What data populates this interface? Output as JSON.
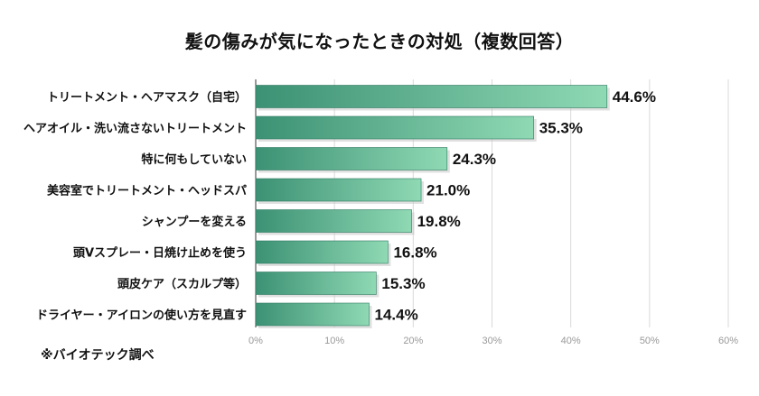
{
  "chart_data": {
    "type": "bar",
    "orientation": "horizontal",
    "title": "髪の傷みが気になったときの対処（複数回答）",
    "categories": [
      "トリートメント・ヘアマスク（自宅）",
      "ヘアオイル・洗い流さないトリートメント",
      "特に何もしていない",
      "美容室でトリートメント・ヘッドスパ",
      "シャンプーを変える",
      "頭Vスプレー・日焼け止めを使う",
      "頭皮ケア（スカルプ等）",
      "ドライヤー・アイロンの使い方を見直す"
    ],
    "values": [
      44.6,
      35.3,
      24.3,
      21.0,
      19.8,
      16.8,
      15.3,
      14.4
    ],
    "value_labels": [
      "44.6%",
      "35.3%",
      "24.3%",
      "21.0%",
      "19.8%",
      "16.8%",
      "15.3%",
      "14.4%"
    ],
    "xlim": [
      0,
      60
    ],
    "xticks": [
      "0%",
      "10%",
      "20%",
      "30%",
      "40%",
      "50%",
      "60%"
    ],
    "xlabel": "",
    "ylabel": "",
    "grid": true,
    "colors": {
      "bar_start": "#3c9174",
      "bar_end": "#8fd9b4",
      "bar_edge": "#2f7a61",
      "grid": "#d9d9d9",
      "axis": "#333333"
    }
  },
  "source_note": "※バイオテック調べ"
}
